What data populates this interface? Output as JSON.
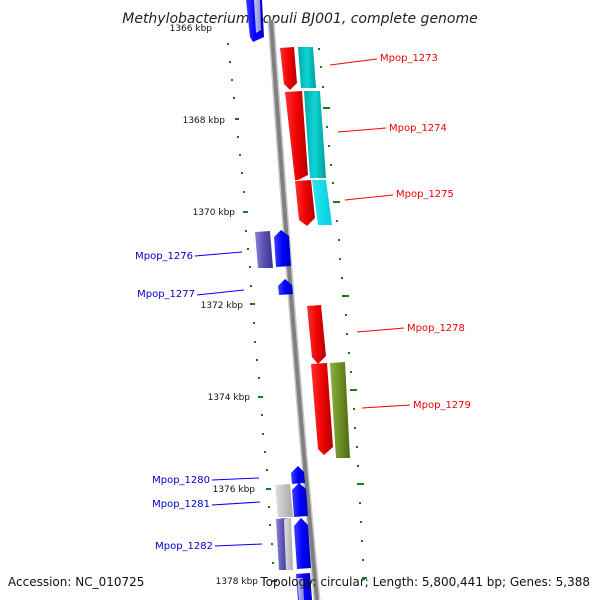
{
  "title": "Methylobacterium populi BJ001, complete genome",
  "footer": {
    "accession": "Accession: NC_010725",
    "topology": "Topology: circular; Length: 5,800,441 bp; Genes: 5,388"
  },
  "kbp_labels": {
    "k1366": "1366 kbp",
    "k1368": "1368 kbp",
    "k1370": "1370 kbp",
    "k1372": "1372 kbp",
    "k1374": "1374 kbp",
    "k1376": "1376 kbp",
    "k1378": "1378 kbp"
  },
  "genes": {
    "g1273": "Mpop_1273",
    "g1274": "Mpop_1274",
    "g1275": "Mpop_1275",
    "g1276": "Mpop_1276",
    "g1277": "Mpop_1277",
    "g1278": "Mpop_1278",
    "g1279": "Mpop_1279",
    "g1280": "Mpop_1280",
    "g1281": "Mpop_1281",
    "g1282": "Mpop_1282"
  },
  "colors": {
    "forward_strand": "#ff0000",
    "reverse_strand": "#0000ff",
    "cyan_feature": "#00cccc",
    "olive_feature": "#6b8e23",
    "purple_feature": "#5a4fb0",
    "grey_feature": "#bdbdbd",
    "backbone": "#808080",
    "tick": "#1a7a1a"
  }
}
